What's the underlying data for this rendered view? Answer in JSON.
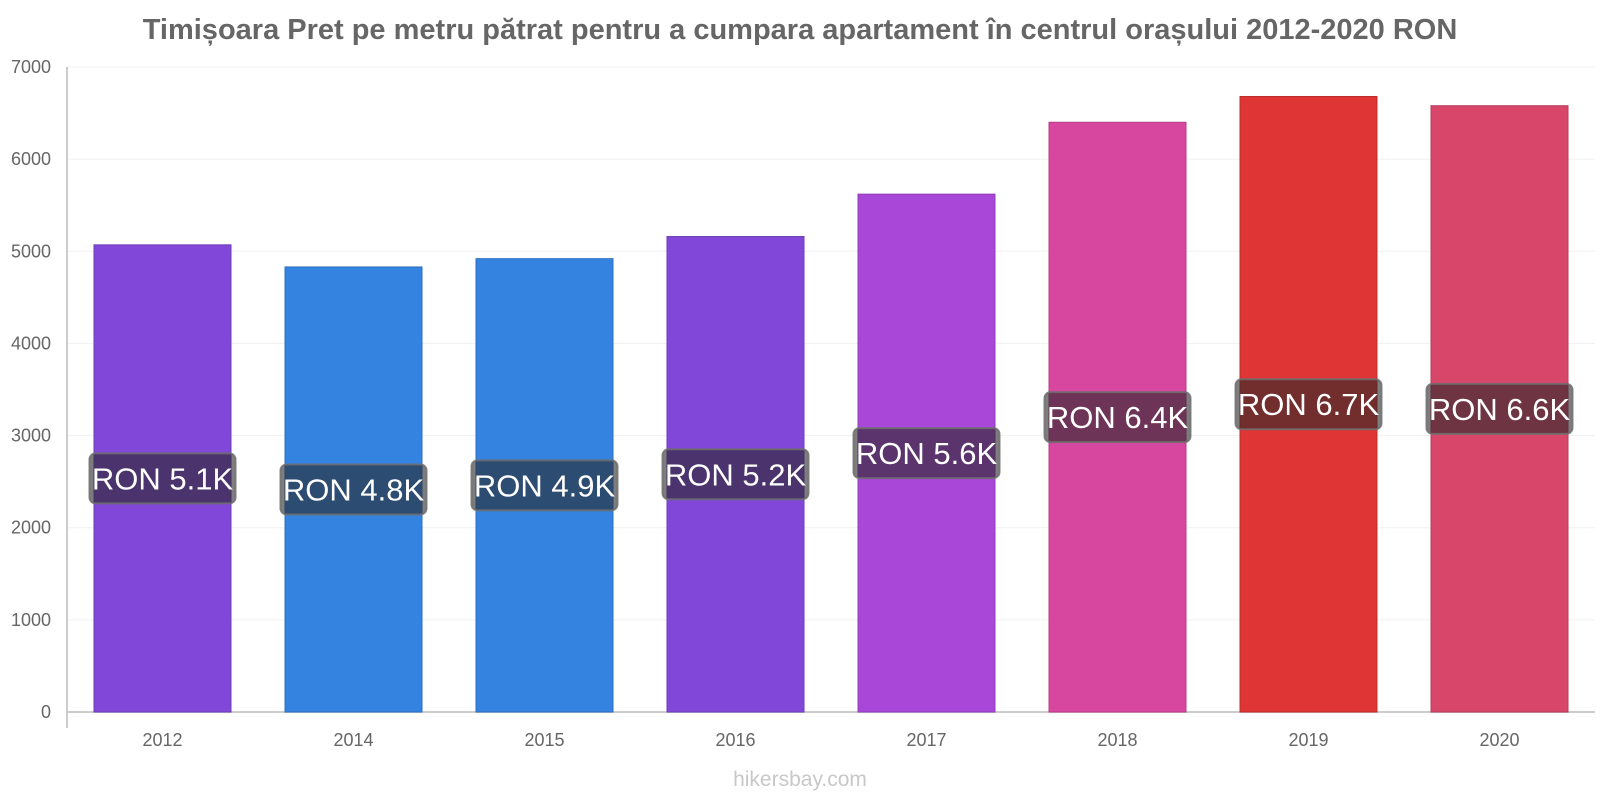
{
  "chart_data": {
    "type": "bar",
    "title": "Timișoara Pret pe metru pătrat pentru a cumpara apartament în centrul orașului 2012-2020 RON",
    "xlabel": "",
    "ylabel": "",
    "ylim": [
      0,
      7000
    ],
    "yticks": [
      0,
      1000,
      2000,
      3000,
      4000,
      5000,
      6000,
      7000
    ],
    "grid": true,
    "categories": [
      "2012",
      "2014",
      "2015",
      "2016",
      "2017",
      "2018",
      "2019",
      "2020"
    ],
    "values": [
      5070,
      4830,
      4920,
      5160,
      5620,
      6400,
      6680,
      6580
    ],
    "data_labels": [
      "RON 5.1K",
      "RON 4.8K",
      "RON 4.9K",
      "RON 5.2K",
      "RON 5.6K",
      "RON 6.4K",
      "RON 6.7K",
      "RON 6.6K"
    ],
    "colors": [
      "#8047d8",
      "#3583e0",
      "#3583e0",
      "#8047d8",
      "#a947d8",
      "#d8479f",
      "#e03535",
      "#d8476a"
    ]
  },
  "watermark": "hikersbay.com"
}
